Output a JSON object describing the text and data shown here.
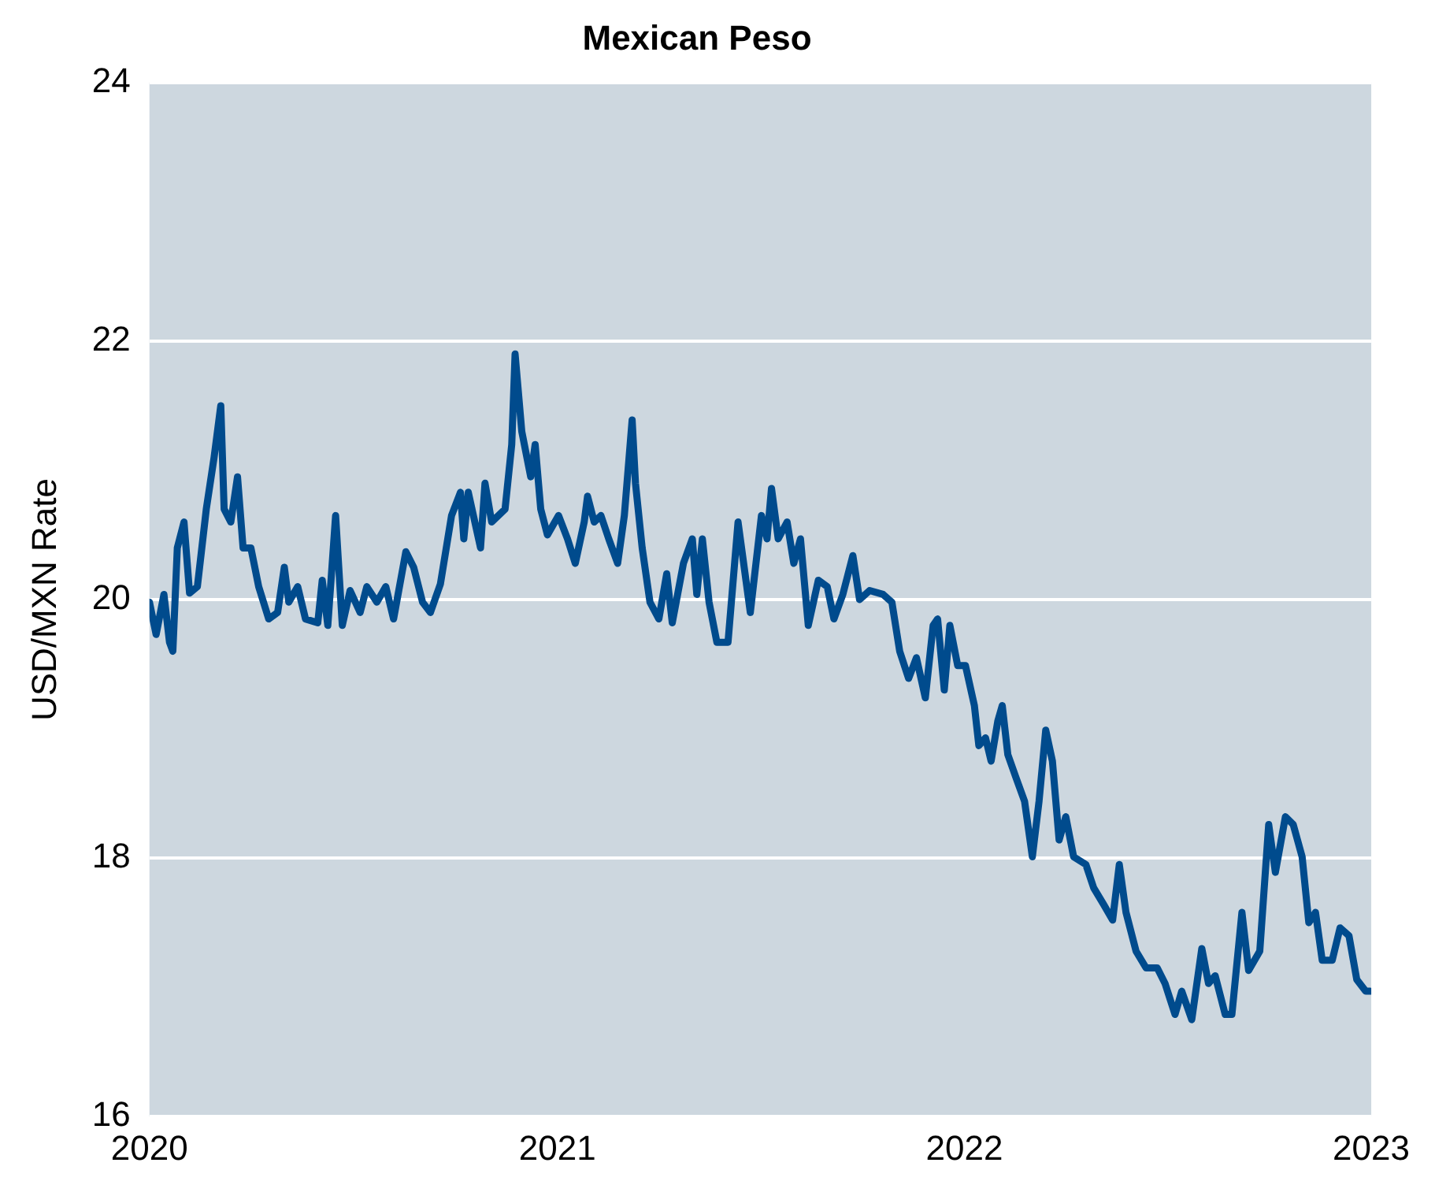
{
  "chart_data": {
    "type": "line",
    "title": "Mexican Peso",
    "ylabel": "USD/MXN Rate",
    "x": [
      "2020-01-01",
      "2020-01-07",
      "2020-01-14",
      "2020-01-19",
      "2020-01-22",
      "2020-01-26",
      "2020-02-01",
      "2020-02-06",
      "2020-02-13",
      "2020-02-21",
      "2020-02-28",
      "2020-03-05",
      "2020-03-08",
      "2020-03-14",
      "2020-03-20",
      "2020-03-25",
      "2020-04-01",
      "2020-04-08",
      "2020-04-17",
      "2020-04-25",
      "2020-05-01",
      "2020-05-05",
      "2020-05-13",
      "2020-05-20",
      "2020-05-31",
      "2020-06-04",
      "2020-06-09",
      "2020-06-16",
      "2020-06-22",
      "2020-06-29",
      "2020-07-08",
      "2020-07-14",
      "2020-07-23",
      "2020-07-31",
      "2020-08-07",
      "2020-08-18",
      "2020-08-25",
      "2020-09-02",
      "2020-09-09",
      "2020-09-18",
      "2020-09-28",
      "2020-10-06",
      "2020-10-09",
      "2020-10-13",
      "2020-10-24",
      "2020-10-28",
      "2020-11-03",
      "2020-11-15",
      "2020-11-21",
      "2020-11-24",
      "2020-11-30",
      "2020-12-08",
      "2020-12-12",
      "2020-12-17",
      "2020-12-23",
      "2021-01-02",
      "2021-01-10",
      "2021-01-17",
      "2021-01-25",
      "2021-01-28",
      "2021-02-03",
      "2021-02-09",
      "2021-02-16",
      "2021-02-24",
      "2021-03-02",
      "2021-03-09",
      "2021-03-12",
      "2021-03-18",
      "2021-03-25",
      "2021-04-02",
      "2021-04-09",
      "2021-04-14",
      "2021-04-24",
      "2021-05-02",
      "2021-05-06",
      "2021-05-11",
      "2021-05-17",
      "2021-05-24",
      "2021-06-03",
      "2021-06-12",
      "2021-06-23",
      "2021-07-03",
      "2021-07-08",
      "2021-07-12",
      "2021-07-18",
      "2021-07-26",
      "2021-08-01",
      "2021-08-07",
      "2021-08-14",
      "2021-08-23",
      "2021-08-31",
      "2021-09-06",
      "2021-09-14",
      "2021-09-23",
      "2021-09-29",
      "2021-10-08",
      "2021-10-20",
      "2021-10-28",
      "2021-11-04",
      "2021-11-12",
      "2021-11-19",
      "2021-11-27",
      "2021-12-04",
      "2021-12-08",
      "2021-12-14",
      "2021-12-19",
      "2021-12-26",
      "2022-01-02",
      "2022-01-10",
      "2022-01-14",
      "2022-01-20",
      "2022-01-25",
      "2022-01-31",
      "2022-02-04",
      "2022-02-09",
      "2022-02-16",
      "2022-02-24",
      "2022-03-03",
      "2022-03-09",
      "2022-03-15",
      "2022-03-21",
      "2022-03-27",
      "2022-04-02",
      "2022-04-09",
      "2022-04-20",
      "2022-04-27",
      "2022-05-06",
      "2022-05-14",
      "2022-05-20",
      "2022-05-26",
      "2022-06-04",
      "2022-06-13",
      "2022-06-23",
      "2022-06-30",
      "2022-07-09",
      "2022-07-15",
      "2022-07-24",
      "2022-08-02",
      "2022-08-08",
      "2022-08-14",
      "2022-08-23",
      "2022-08-29",
      "2022-09-07",
      "2022-09-13",
      "2022-09-23",
      "2022-10-01",
      "2022-10-07",
      "2022-10-16",
      "2022-10-23",
      "2022-10-31",
      "2022-11-06",
      "2022-11-12",
      "2022-11-18",
      "2022-11-27",
      "2022-12-04",
      "2022-12-12",
      "2022-12-19",
      "2022-12-27",
      "2022-12-31"
    ],
    "series": [
      {
        "color": "#004b8d",
        "values": [
          19.98,
          19.73,
          20.04,
          19.67,
          19.6,
          20.4,
          20.6,
          20.05,
          20.1,
          20.7,
          21.1,
          21.5,
          20.7,
          20.6,
          20.95,
          20.4,
          20.4,
          20.1,
          19.85,
          19.9,
          20.25,
          19.98,
          20.1,
          19.85,
          19.82,
          20.15,
          19.8,
          20.65,
          19.8,
          20.07,
          19.9,
          20.1,
          19.98,
          20.1,
          19.85,
          20.37,
          20.25,
          19.98,
          19.9,
          20.12,
          20.65,
          20.83,
          20.47,
          20.83,
          20.4,
          20.9,
          20.6,
          20.7,
          21.2,
          21.9,
          21.3,
          20.95,
          21.2,
          20.7,
          20.5,
          20.65,
          20.47,
          20.28,
          20.6,
          20.8,
          20.6,
          20.65,
          20.47,
          20.28,
          20.65,
          21.39,
          20.9,
          20.4,
          19.98,
          19.85,
          20.2,
          19.82,
          20.28,
          20.47,
          20.04,
          20.47,
          19.98,
          19.67,
          19.67,
          20.6,
          19.9,
          20.65,
          20.47,
          20.86,
          20.47,
          20.6,
          20.28,
          20.47,
          19.8,
          20.15,
          20.1,
          19.85,
          20.04,
          20.34,
          20.0,
          20.07,
          20.04,
          19.98,
          19.6,
          19.39,
          19.55,
          19.24,
          19.8,
          19.85,
          19.3,
          19.8,
          19.49,
          19.49,
          19.18,
          18.87,
          18.93,
          18.75,
          19.06,
          19.18,
          18.8,
          18.63,
          18.44,
          18.01,
          18.44,
          18.99,
          18.75,
          18.14,
          18.32,
          18.01,
          17.95,
          17.77,
          17.64,
          17.52,
          17.95,
          17.58,
          17.28,
          17.15,
          17.15,
          17.03,
          16.79,
          16.97,
          16.75,
          17.3,
          17.03,
          17.09,
          16.79,
          16.79,
          17.58,
          17.13,
          17.28,
          18.26,
          17.89,
          18.32,
          18.26,
          18.01,
          17.5,
          17.58,
          17.21,
          17.21,
          17.46,
          17.4,
          17.06,
          16.97,
          16.97
        ]
      }
    ],
    "xlim": [
      "2020",
      "2023"
    ],
    "xticks": [
      "2020",
      "2021",
      "2022",
      "2023"
    ],
    "ylim": [
      16,
      24
    ],
    "yticks": [
      16,
      18,
      20,
      22,
      24
    ],
    "grid": "y"
  }
}
